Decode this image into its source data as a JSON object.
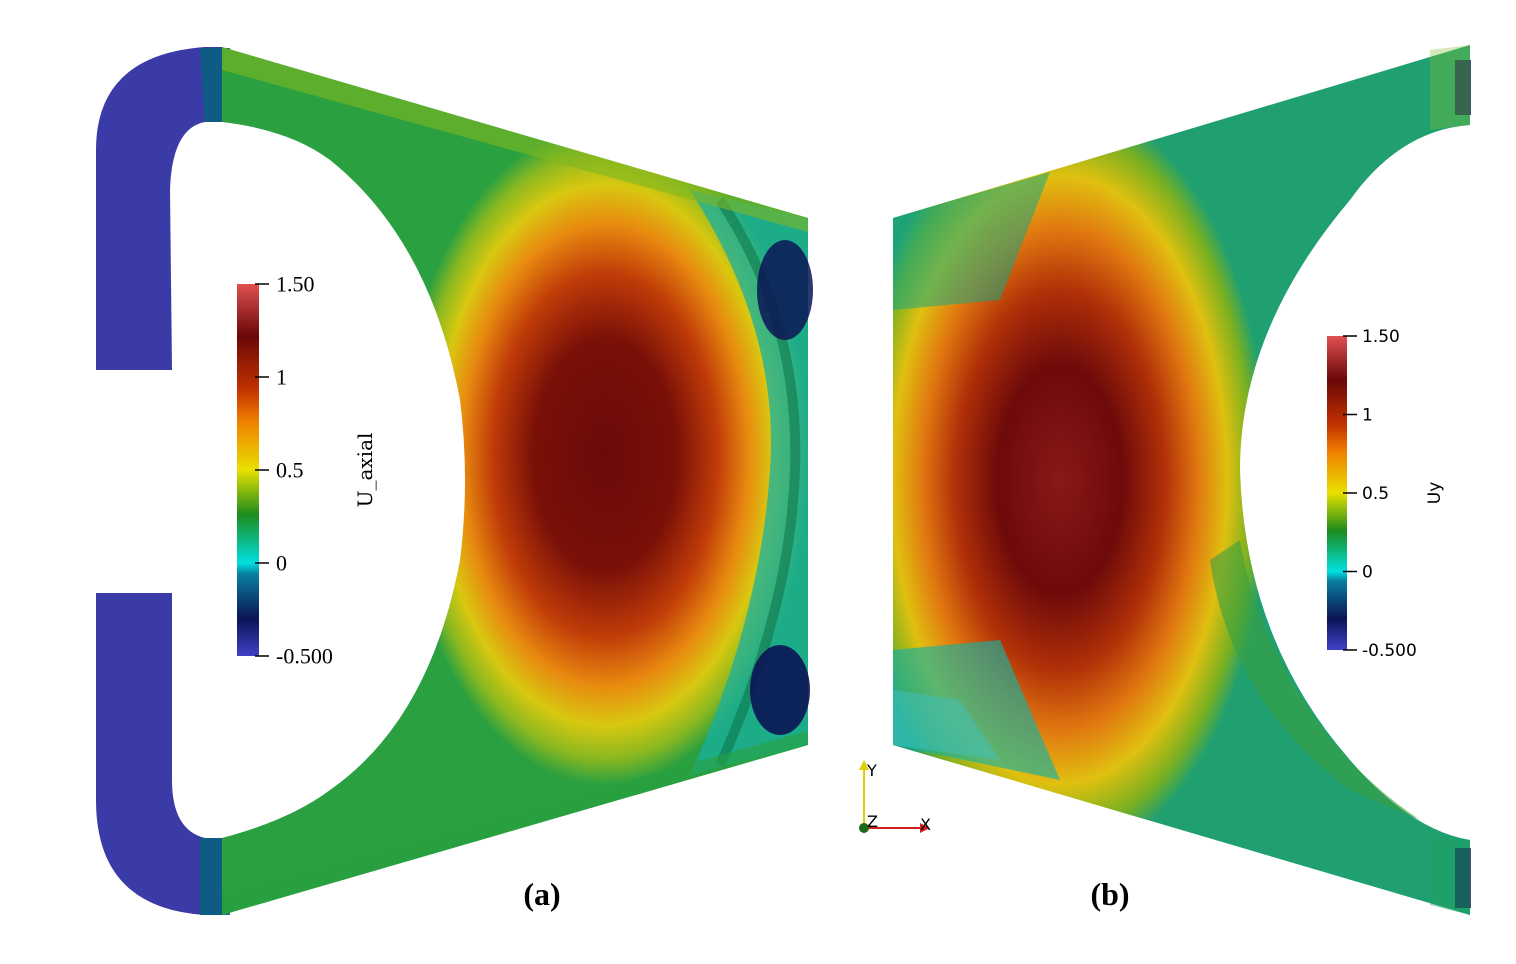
{
  "panels": [
    {
      "id": "a",
      "caption": "(a)",
      "colorbar": {
        "title": "U_axial",
        "ticks": [
          "1.50",
          "1",
          "0.5",
          "0",
          "-0.500"
        ],
        "range": [
          -0.5,
          1.5
        ]
      }
    },
    {
      "id": "b",
      "caption": "(b)",
      "colorbar": {
        "title": "Uy",
        "ticks": [
          "1.50",
          "1",
          "0.5",
          "0",
          "-0.500"
        ],
        "range": [
          -0.5,
          1.5
        ]
      }
    }
  ],
  "orientation_axes": {
    "y_label": "Y",
    "z_label": "Z",
    "x_label": "X"
  },
  "colormap": [
    "#3b3ba8",
    "#0b1455",
    "#00e0e0",
    "#1c8c1c",
    "#f0e000",
    "#e06000",
    "#6e0a0a",
    "#d64545"
  ]
}
